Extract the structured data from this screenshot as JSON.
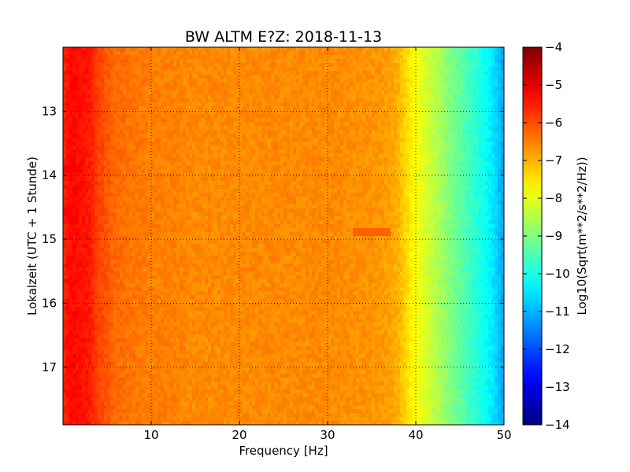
{
  "chart_data": {
    "type": "heatmap",
    "title": "BW ALTM E?Z: 2018-11-13",
    "xlabel": "Frequency [Hz]",
    "ylabel": "Lokalzeit (UTC + 1 Stunde)",
    "xlim": [
      0,
      50
    ],
    "ylim": [
      12,
      17.9
    ],
    "y_inverted": true,
    "x_ticks": [
      10,
      20,
      30,
      40,
      50
    ],
    "x_tick_labels": [
      "10",
      "20",
      "30",
      "40",
      "50"
    ],
    "y_ticks": [
      13,
      14,
      15,
      16,
      17
    ],
    "y_tick_labels": [
      "13",
      "14",
      "15",
      "16",
      "17"
    ],
    "grid": true,
    "grid_style": "dotted",
    "colormap": "jet",
    "colorbar": {
      "label": "Log10(Sqrt(m**2/s**2/Hz))",
      "range": [
        -14,
        -4
      ],
      "ticks": [
        -4,
        -5,
        -6,
        -7,
        -8,
        -9,
        -10,
        -11,
        -12,
        -13,
        -14
      ],
      "tick_labels": [
        "−4",
        "−5",
        "−6",
        "−7",
        "−8",
        "−9",
        "−10",
        "−11",
        "−12",
        "−13",
        "−14"
      ]
    },
    "spectrum_profile": {
      "frequency_hz": [
        0,
        1,
        2,
        3,
        4,
        5,
        6,
        8,
        10,
        12,
        15,
        20,
        25,
        30,
        35,
        37,
        38,
        39,
        40,
        41,
        42,
        43,
        44,
        45,
        46,
        47,
        48,
        49,
        50
      ],
      "log10_value": [
        -5.6,
        -5.3,
        -5.4,
        -5.5,
        -5.9,
        -6.1,
        -6.3,
        -6.4,
        -6.5,
        -6.5,
        -6.6,
        -6.6,
        -6.6,
        -6.6,
        -6.7,
        -6.8,
        -7.0,
        -7.4,
        -7.8,
        -8.1,
        -8.4,
        -8.7,
        -9.0,
        -9.3,
        -9.6,
        -9.9,
        -10.2,
        -10.6,
        -11.2
      ]
    },
    "horizontal_features": [
      {
        "time": 13.9,
        "level": -5.2,
        "fmax": 2
      },
      {
        "time": 14.6,
        "level": -5.2,
        "fmax": 1
      },
      {
        "time": 14.9,
        "level": -6.2,
        "fmin": 33,
        "fmax": 37
      }
    ]
  }
}
